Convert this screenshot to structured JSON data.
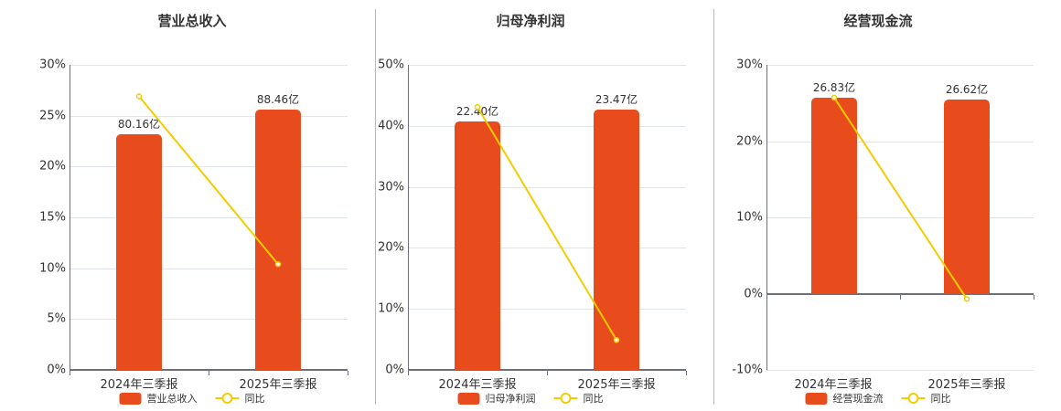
{
  "colors": {
    "bar": "#e84c1c",
    "line": "#f5cc00",
    "grid": "#dfe4ea",
    "axis": "#6e7079"
  },
  "legend_line_label": "同比",
  "chart_data": [
    {
      "type": "bar+line",
      "title": "营业总收入",
      "categories": [
        "2024年三季报",
        "2025年三季报"
      ],
      "series": [
        {
          "name": "营业总收入",
          "type": "bar",
          "values": [
            80.16,
            88.46
          ],
          "labels": [
            "80.16亿",
            "88.46亿"
          ],
          "unit": "亿"
        },
        {
          "name": "同比",
          "type": "line",
          "values": [
            26.9,
            10.4
          ],
          "unit": "%"
        }
      ],
      "yticks": [
        "0%",
        "5%",
        "10%",
        "15%",
        "20%",
        "25%",
        "30%"
      ],
      "ylim": [
        0,
        30
      ]
    },
    {
      "type": "bar+line",
      "title": "归母净利润",
      "categories": [
        "2024年三季报",
        "2025年三季报"
      ],
      "series": [
        {
          "name": "归母净利润",
          "type": "bar",
          "values": [
            22.4,
            23.47
          ],
          "labels": [
            "22.40亿",
            "23.47亿"
          ],
          "unit": "亿"
        },
        {
          "name": "同比",
          "type": "line",
          "values": [
            43.1,
            4.9
          ],
          "unit": "%"
        }
      ],
      "yticks": [
        "0%",
        "10%",
        "20%",
        "30%",
        "40%",
        "50%"
      ],
      "ylim": [
        0,
        50
      ]
    },
    {
      "type": "bar+line",
      "title": "经营现金流",
      "categories": [
        "2024年三季报",
        "2025年三季报"
      ],
      "series": [
        {
          "name": "经营现金流",
          "type": "bar",
          "values": [
            26.83,
            26.62
          ],
          "labels": [
            "26.83亿",
            "26.62亿"
          ],
          "unit": "亿"
        },
        {
          "name": "同比",
          "type": "line",
          "values": [
            25.7,
            -0.7
          ],
          "unit": "%"
        }
      ],
      "yticks": [
        "-10%",
        "0%",
        "10%",
        "20%",
        "30%"
      ],
      "ylim": [
        -10,
        30
      ]
    }
  ]
}
